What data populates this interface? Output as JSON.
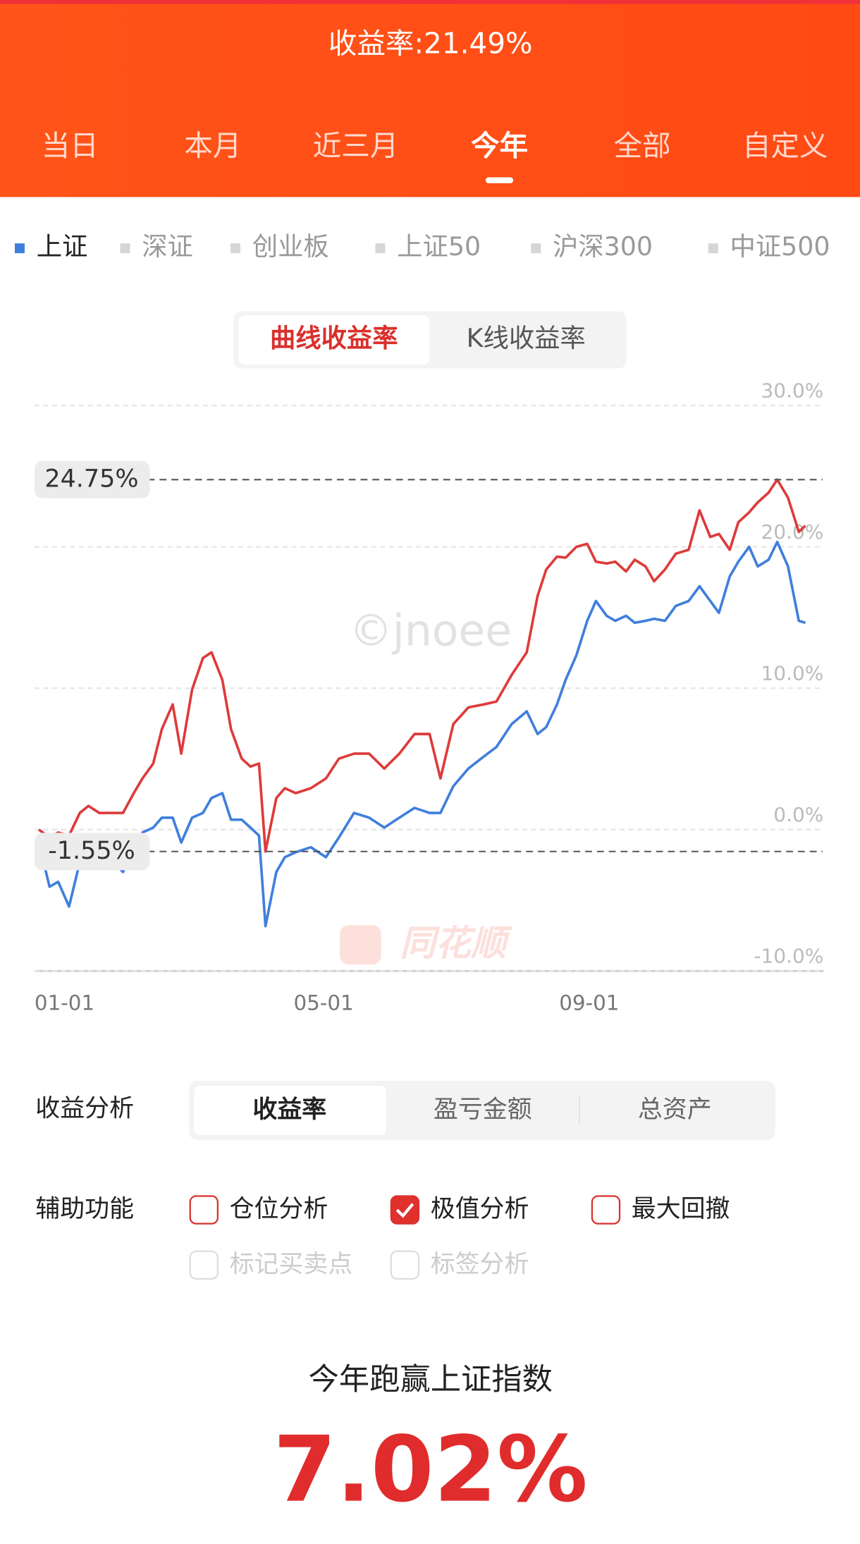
{
  "header": {
    "title": "收益率:21.49%",
    "tabs": [
      "当日",
      "本月",
      "近三月",
      "今年",
      "全部",
      "自定义"
    ]
  },
  "indices": [
    "上证",
    "深证",
    "创业板",
    "上证50",
    "沪深300",
    "中证500"
  ],
  "chart_toggle": [
    "曲线收益率",
    "K线收益率"
  ],
  "chart_data": {
    "type": "line",
    "watermark": "©jnoee",
    "logo": "同花顺",
    "x": [
      2,
      7,
      11,
      16,
      21,
      25,
      30,
      34,
      41,
      46,
      50,
      55,
      59,
      64,
      68,
      73,
      78,
      82,
      87,
      91,
      96,
      100,
      104,
      107,
      112,
      116,
      121,
      128,
      135,
      141,
      148,
      155,
      162,
      169,
      176,
      183,
      188,
      194,
      201,
      208,
      214,
      221,
      228,
      233,
      237,
      242,
      246,
      251,
      256,
      260,
      265,
      269,
      274,
      278,
      283,
      287,
      292,
      297,
      303,
      308,
      313,
      317,
      322,
      326,
      331,
      335,
      340,
      344,
      349,
      354,
      357
    ],
    "series": [
      {
        "color": "#de3a3a",
        "values": [
          0.0,
          -0.56,
          -0.21,
          -0.42,
          1.18,
          1.67,
          1.18,
          1.18,
          1.18,
          2.58,
          3.62,
          4.67,
          7.11,
          8.85,
          5.37,
          9.9,
          12.13,
          12.54,
          10.59,
          7.11,
          5.02,
          4.46,
          4.67,
          -1.55,
          2.23,
          2.93,
          2.58,
          2.93,
          3.62,
          5.02,
          5.37,
          5.37,
          4.32,
          5.37,
          6.76,
          6.76,
          3.62,
          7.46,
          8.64,
          8.85,
          9.06,
          10.94,
          12.54,
          16.52,
          18.4,
          19.3,
          19.23,
          20.0,
          20.21,
          18.95,
          18.82,
          18.95,
          18.26,
          19.09,
          18.61,
          17.56,
          18.4,
          19.51,
          19.79,
          22.58,
          20.7,
          20.91,
          19.79,
          21.74,
          22.44,
          23.14,
          23.83,
          24.75,
          23.48,
          21.05,
          21.49
        ]
      },
      {
        "color": "#3f7fdc",
        "values": [
          -0.91,
          -4.04,
          -3.69,
          -5.44,
          -2.3,
          -2.79,
          -2.65,
          -1.95,
          -3.0,
          -1.25,
          -0.21,
          0.14,
          0.84,
          0.84,
          -0.91,
          0.84,
          1.18,
          2.23,
          2.58,
          0.7,
          0.7,
          0.14,
          -0.42,
          -6.83,
          -3.0,
          -1.95,
          -1.6,
          -1.25,
          -1.95,
          -0.56,
          1.18,
          0.84,
          0.14,
          0.84,
          1.53,
          1.18,
          1.18,
          3.07,
          4.32,
          5.16,
          5.85,
          7.46,
          8.36,
          6.76,
          7.25,
          8.85,
          10.59,
          12.33,
          14.77,
          16.17,
          15.12,
          14.77,
          15.12,
          14.63,
          14.77,
          14.91,
          14.77,
          15.82,
          16.17,
          17.21,
          16.17,
          15.33,
          17.91,
          18.95,
          20.0,
          18.61,
          19.09,
          20.35,
          18.61,
          14.77,
          14.63
        ]
      }
    ],
    "xlim": [
      0,
      365
    ],
    "xticks": [
      {
        "value": 0,
        "label": "01-01"
      },
      {
        "value": 120,
        "label": "05-01"
      },
      {
        "value": 243,
        "label": "09-01"
      }
    ],
    "ylim": [
      -10,
      30
    ],
    "yticks": [
      {
        "value": -10,
        "label": "-10.0%"
      },
      {
        "value": 0,
        "label": "0.0%"
      },
      {
        "value": 10,
        "label": "10.0%"
      },
      {
        "value": 20,
        "label": "20.0%"
      },
      {
        "value": 30,
        "label": "30.0%"
      }
    ],
    "grid": true,
    "extremes": [
      {
        "value": 24.75,
        "label": "24.75%"
      },
      {
        "value": -1.55,
        "label": "-1.55%"
      }
    ]
  },
  "analysis": {
    "label": "收益分析",
    "options": [
      "收益率",
      "盈亏金额",
      "总资产"
    ]
  },
  "aux": {
    "label": "辅助功能",
    "options": [
      "仓位分析",
      "极值分析",
      "最大回撤",
      "标记买卖点",
      "标签分析"
    ]
  },
  "summary": {
    "title": "今年跑赢上证指数",
    "value": "7.02%"
  }
}
